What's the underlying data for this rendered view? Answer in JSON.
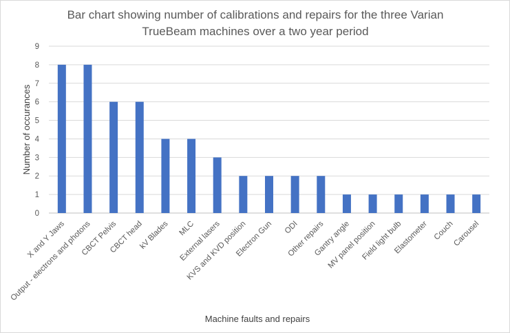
{
  "chart_data": {
    "type": "bar",
    "title_lines": [
      "Bar chart showing number of calibrations and repairs for the three Varian",
      "TrueBeam machines over a two year period"
    ],
    "xlabel": "Machine faults and repairs",
    "ylabel": "Number of occurances",
    "ylim": [
      0,
      9
    ],
    "yticks": [
      0,
      1,
      2,
      3,
      4,
      5,
      6,
      7,
      8,
      9
    ],
    "grid": true,
    "bar_color": "#4472C4",
    "categories": [
      "X and Y Jaws",
      "Output - electrons and photons",
      "CBCT Pelvis",
      "CBCT head",
      "kV Blades",
      "MLC",
      "External lasers",
      "KVS and KVD position",
      "Electron Gun",
      "ODI",
      "Other repairs",
      "Gantry angle",
      "MV panel position",
      "Field light bulb",
      "Elastometer",
      "Couch",
      "Carousel"
    ],
    "values": [
      8,
      8,
      6,
      6,
      4,
      4,
      3,
      2,
      2,
      2,
      2,
      1,
      1,
      1,
      1,
      1,
      1
    ]
  }
}
